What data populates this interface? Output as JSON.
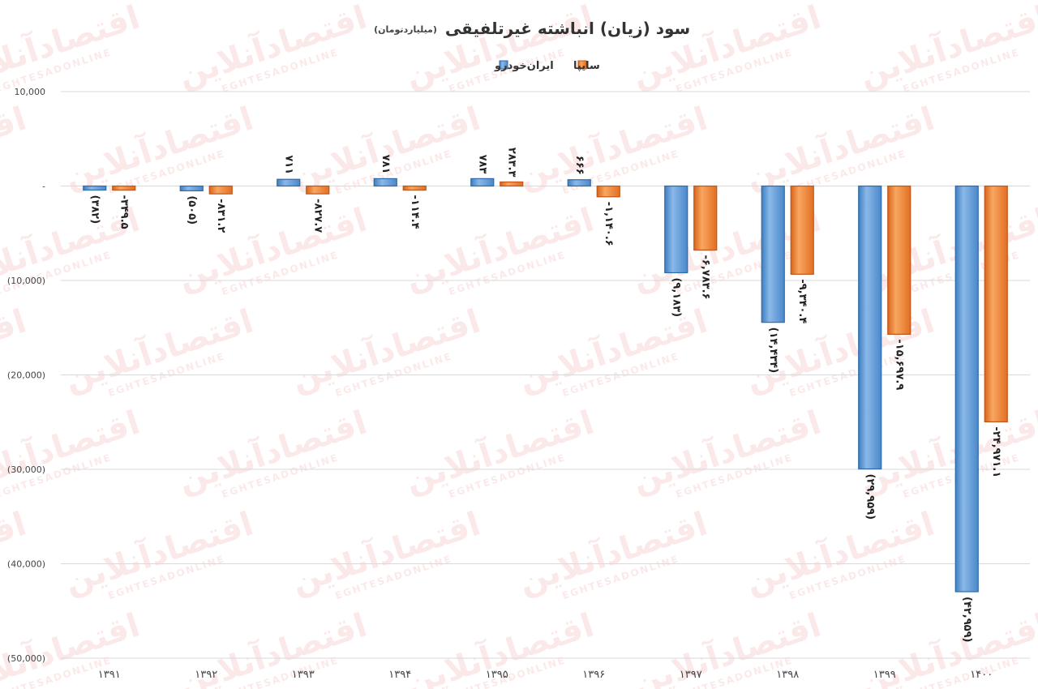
{
  "chart_data": {
    "type": "bar",
    "title": "سود (زیان) انباشته غیرتلفیقی",
    "subtitle": "(میلیاردتومان)",
    "legend_placement": "top-center",
    "grid": true,
    "ylim": [
      -50000,
      10000
    ],
    "y_ticks": [
      {
        "value": 10000,
        "label": "10,000"
      },
      {
        "value": 0,
        "label": "-"
      },
      {
        "value": -10000,
        "label": "(10,000)"
      },
      {
        "value": -20000,
        "label": "(20,000)"
      },
      {
        "value": -30000,
        "label": "(30,000)"
      },
      {
        "value": -40000,
        "label": "(40,000)"
      },
      {
        "value": -50000,
        "label": "(50,000)"
      }
    ],
    "categories": [
      "۱۳۹۱",
      "۱۳۹۲",
      "۱۳۹۳",
      "۱۳۹۴",
      "۱۳۹۵",
      "۱۳۹۶",
      "۱۳۹۷",
      "۱۳۹۸",
      "۱۳۹۹",
      "۱۴۰۰"
    ],
    "series": [
      {
        "name": "ایران‌خودرو",
        "color": "#5b9bd5",
        "values": [
          -382,
          -505,
          711,
          781,
          783,
          666,
          -9183,
          -14434,
          -29959,
          -42959
        ],
        "labels": [
          "(۳۸۲)",
          "(۵۰۵)",
          "۷۱۱",
          "۷۸۱",
          "۷۸۳",
          "۶۶۶",
          "(۹,۱۸۳)",
          "(۱۴,۴۳۴)",
          "(۲۹,۹۵۹)",
          "(۴۲,۹۵۹)"
        ]
      },
      {
        "name": "سایپا",
        "color": "#ed7d31",
        "values": [
          -349.5,
          -831.2,
          -827.7,
          -114.4,
          283.3,
          -1140.6,
          -6783.6,
          -9340.4,
          -15697.9,
          -24971.1
        ],
        "labels": [
          "-۳۴۹.۵",
          "-۸۳۱.۲",
          "-۸۲۷.۷",
          "-۱۱۴.۴",
          "۲۸۳.۳",
          "-۱,۱۴۰.۶",
          "-۶,۷۸۳.۶",
          "-۹,۳۴۰.۴",
          "-۱۵,۶۹۷.۹",
          "-۲۴,۹۷۱.۱"
        ]
      }
    ],
    "watermark": {
      "text_fa": "اقتصادآنلاین",
      "text_en": "EGHTESADONLINE"
    }
  }
}
